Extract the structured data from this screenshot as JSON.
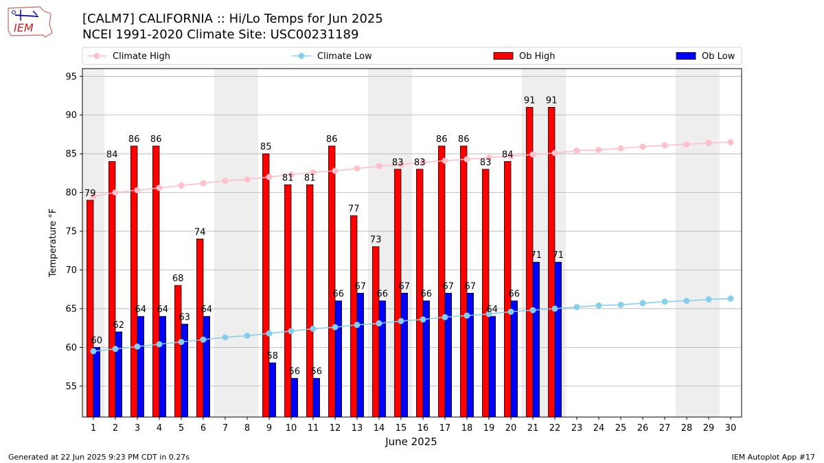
{
  "logo": {
    "text": "IEM"
  },
  "header": {
    "title_line1": "[CALM7] CALIFORNIA :: Hi/Lo Temps for Jun 2025",
    "title_line2": "NCEI 1991-2020 Climate Site: USC00231189"
  },
  "footer": {
    "left": "Generated at 22 Jun 2025 9:23 PM CDT in 0.27s",
    "right": "IEM Autoplot App #17"
  },
  "colors": {
    "ob_high": "#ff0000",
    "ob_low": "#0000ff",
    "climate_high": "#ffc0cb",
    "climate_low": "#87ceeb",
    "weekend_band": "#eeeeee",
    "grid": "#b0b0b0"
  },
  "chart_data": {
    "type": "bar",
    "xlabel": "June 2025",
    "ylabel": "Temperature °F",
    "ylim": [
      51,
      96
    ],
    "xlim": [
      0.5,
      30.5
    ],
    "yticks": [
      55,
      60,
      65,
      70,
      75,
      80,
      85,
      90,
      95
    ],
    "grid": "horizontal",
    "legend_position": "top",
    "days": [
      1,
      2,
      3,
      4,
      5,
      6,
      7,
      8,
      9,
      10,
      11,
      12,
      13,
      14,
      15,
      16,
      17,
      18,
      19,
      20,
      21,
      22,
      23,
      24,
      25,
      26,
      27,
      28,
      29,
      30
    ],
    "weekend_bands": [
      [
        0.5,
        1.5
      ],
      [
        6.5,
        8.5
      ],
      [
        13.5,
        15.5
      ],
      [
        20.5,
        22.5
      ],
      [
        27.5,
        29.5
      ]
    ],
    "series": [
      {
        "name": "Climate High",
        "kind": "line",
        "values": [
          79.5,
          80.0,
          80.3,
          80.6,
          80.9,
          81.2,
          81.5,
          81.7,
          82.0,
          82.3,
          82.6,
          82.8,
          83.1,
          83.4,
          83.6,
          83.9,
          84.1,
          84.3,
          84.5,
          84.7,
          84.9,
          85.1,
          85.4,
          85.5,
          85.7,
          85.9,
          86.1,
          86.2,
          86.4,
          86.5
        ]
      },
      {
        "name": "Climate Low",
        "kind": "line",
        "values": [
          59.5,
          59.8,
          60.1,
          60.4,
          60.7,
          61.0,
          61.3,
          61.5,
          61.8,
          62.1,
          62.4,
          62.6,
          62.9,
          63.1,
          63.4,
          63.6,
          63.9,
          64.1,
          64.3,
          64.6,
          64.8,
          65.0,
          65.2,
          65.4,
          65.5,
          65.7,
          65.9,
          66.0,
          66.2,
          66.3
        ]
      },
      {
        "name": "Ob High",
        "kind": "bar",
        "values": [
          79,
          84,
          86,
          86,
          68,
          74,
          null,
          null,
          85,
          81,
          81,
          86,
          77,
          73,
          83,
          83,
          86,
          86,
          83,
          84,
          91,
          91,
          null,
          null,
          null,
          null,
          null,
          null,
          null,
          null
        ]
      },
      {
        "name": "Ob Low",
        "kind": "bar",
        "values": [
          60,
          62,
          64,
          64,
          63,
          64,
          null,
          null,
          58,
          56,
          56,
          66,
          67,
          66,
          67,
          66,
          67,
          67,
          64,
          66,
          71,
          71,
          null,
          null,
          null,
          null,
          null,
          null,
          null,
          null
        ]
      }
    ]
  }
}
